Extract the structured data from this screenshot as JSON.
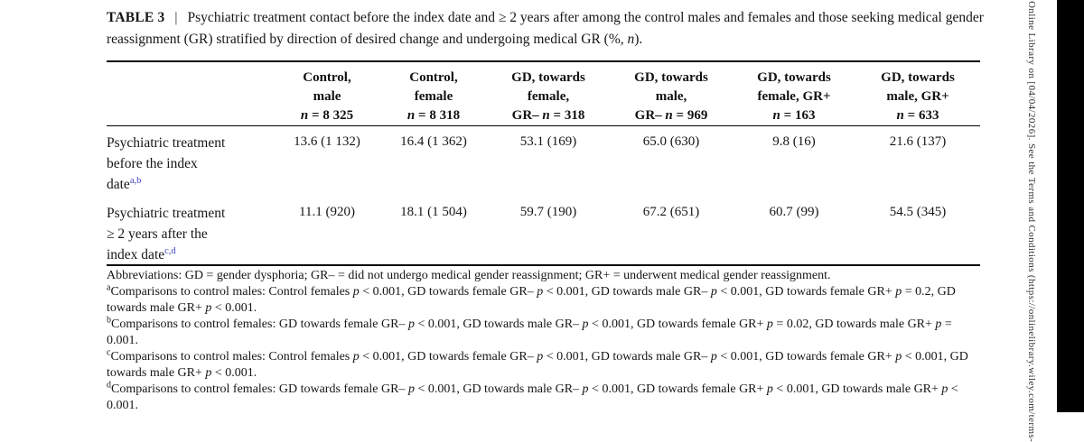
{
  "colors": {
    "background": "#ffffff",
    "text": "#1c1c1c",
    "rule": "#000000",
    "footnote_link_blue": "#3a3ec2",
    "sidebar_text": "#333333",
    "right_bar": "#000000"
  },
  "caption": {
    "label": "TABLE 3",
    "separator": "|",
    "text": "Psychiatric treatment contact before the index date and ≥ 2 years after among the control males and females and those seeking medical gender reassignment (GR) stratified by direction of desired change and undergoing medical GR (%, n)."
  },
  "table": {
    "columns": [
      {
        "lines": [
          "Control,",
          "male",
          "n = 8 325"
        ]
      },
      {
        "lines": [
          "Control,",
          "female",
          "n = 8 318"
        ]
      },
      {
        "lines": [
          "GD, towards",
          "female,",
          "GR– n = 318"
        ]
      },
      {
        "lines": [
          "GD, towards",
          "male,",
          "GR– n = 969"
        ]
      },
      {
        "lines": [
          "GD, towards",
          "female, GR+",
          "n = 163"
        ]
      },
      {
        "lines": [
          "GD, towards",
          "male, GR+",
          "n = 633"
        ]
      }
    ],
    "rows": [
      {
        "label_lines": [
          "Psychiatric treatment",
          "before the index",
          "date"
        ],
        "sup": "a,b",
        "values": [
          "13.6 (1 132)",
          "16.4 (1 362)",
          "53.1 (169)",
          "65.0 (630)",
          "9.8 (16)",
          "21.6 (137)"
        ]
      },
      {
        "label_lines": [
          "Psychiatric treatment",
          "≥ 2 years after the",
          "index date"
        ],
        "sup": "c,d",
        "values": [
          "11.1 (920)",
          "18.1 (1 504)",
          "59.7 (190)",
          "67.2 (651)",
          "60.7 (99)",
          "54.5 (345)"
        ]
      }
    ]
  },
  "footnotes": [
    {
      "marker": "",
      "text": "Abbreviations: GD = gender dysphoria; GR– = did not undergo medical gender reassignment; GR+ = underwent medical gender reassignment."
    },
    {
      "marker": "a",
      "text": "Comparisons to control males: Control females p < 0.001, GD towards female GR– p < 0.001, GD towards male GR– p < 0.001, GD towards female GR+ p = 0.2, GD towards male GR+ p < 0.001."
    },
    {
      "marker": "b",
      "text": "Comparisons to control females: GD towards female GR– p < 0.001, GD towards male GR– p < 0.001, GD towards female GR+ p = 0.02, GD towards male GR+ p = 0.001."
    },
    {
      "marker": "c",
      "text": "Comparisons to control males: Control females p < 0.001, GD towards female GR– p < 0.001, GD towards male GR– p < 0.001, GD towards female GR+ p < 0.001, GD towards male GR+ p < 0.001."
    },
    {
      "marker": "d",
      "text": "Comparisons to control females: GD towards female GR– p < 0.001, GD towards male GR– p < 0.001, GD towards female GR+ p < 0.001, GD towards male GR+ p < 0.001."
    }
  ],
  "sidebar": {
    "vertical_text": "y Online Library on [04/04/2026]. See the Terms and Conditions (https://onlinelibrary.wiley.com/terms-"
  }
}
